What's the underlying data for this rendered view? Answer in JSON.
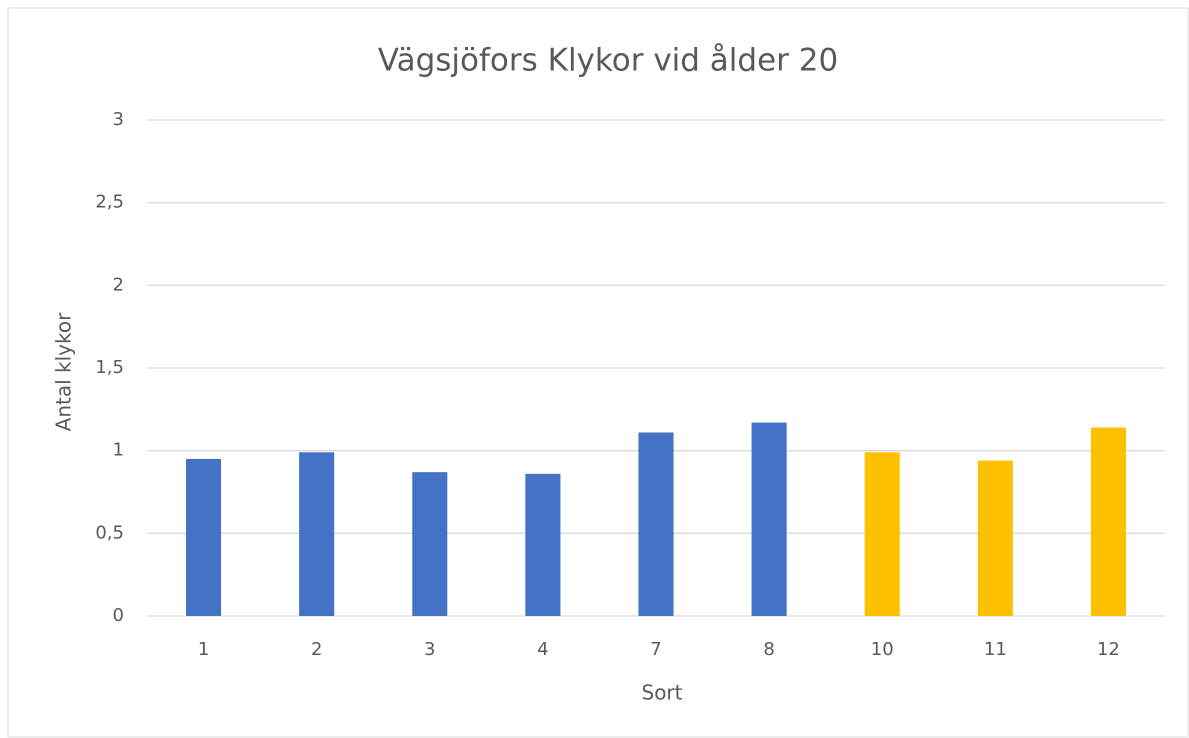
{
  "chart_data": {
    "type": "bar",
    "title": "Vägsjöfors Klykor vid ålder 20",
    "x_label": "Sort",
    "y_label": "Antal klykor",
    "categories": [
      "1",
      "2",
      "3",
      "4",
      "7",
      "8",
      "10",
      "11",
      "12"
    ],
    "values": [
      0.95,
      0.99,
      0.87,
      0.86,
      1.11,
      1.17,
      0.99,
      0.94,
      1.14
    ],
    "colors": [
      "#4472c4",
      "#4472c4",
      "#4472c4",
      "#4472c4",
      "#4472c4",
      "#4472c4",
      "#ffc000",
      "#ffc000",
      "#ffc000"
    ],
    "ylim": [
      0,
      3
    ],
    "yticks": [
      0,
      {
        "value": 0.5,
        "label": "0,5"
      },
      1,
      {
        "value": 1.5,
        "label": "1,5"
      },
      2,
      {
        "value": 2.5,
        "label": "2,5"
      },
      3
    ],
    "grid": true
  }
}
